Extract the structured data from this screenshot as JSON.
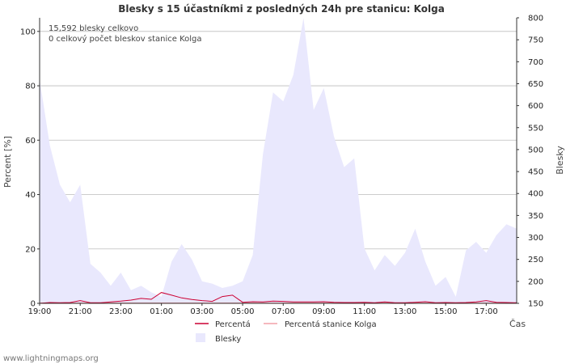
{
  "chart_data": {
    "type": "area",
    "title": "Blesky s 15 účastníkmi z posledných 24h pre stanicu: Kolga",
    "xlabel": "Čas",
    "ylabel_left": "Percent   [%]",
    "ylabel_right": "Blesky",
    "ylim_left": [
      0,
      105
    ],
    "ylim_right": [
      150,
      800
    ],
    "xlim": [
      0,
      23.5
    ],
    "x_ticks": [
      "19:00",
      "21:00",
      "23:00",
      "01:00",
      "03:00",
      "05:00",
      "07:00",
      "09:00",
      "11:00",
      "13:00",
      "15:00",
      "17:00"
    ],
    "y_ticks_left": [
      "0",
      "20",
      "40",
      "60",
      "80",
      "100"
    ],
    "y_ticks_right": [
      "150",
      "200",
      "250",
      "300",
      "350",
      "400",
      "450",
      "500",
      "550",
      "600",
      "650",
      "700",
      "750",
      "800"
    ],
    "annotations": [
      "15,592 blesky celkovo",
      "0 celkový počet bleskov stanice Kolga"
    ],
    "series": [
      {
        "name": "Blesky",
        "axis": "right",
        "x": [
          0,
          0.5,
          1,
          1.5,
          2,
          2.5,
          3,
          3.5,
          4,
          4.5,
          5,
          5.5,
          6,
          6.5,
          7,
          7.5,
          8,
          8.5,
          9,
          9.5,
          10,
          10.5,
          11,
          11.5,
          12,
          12.5,
          13,
          13.5,
          14,
          14.5,
          15,
          15.5,
          16,
          16.5,
          17,
          17.5,
          18,
          18.5,
          19,
          19.5,
          20,
          20.5,
          21,
          21.5,
          22,
          22.5,
          23,
          23.5
        ],
        "values": [
          660,
          510,
          420,
          380,
          420,
          240,
          220,
          190,
          220,
          180,
          190,
          175,
          165,
          245,
          285,
          250,
          200,
          195,
          185,
          190,
          200,
          260,
          490,
          630,
          610,
          670,
          800,
          590,
          640,
          530,
          460,
          480,
          275,
          225,
          260,
          235,
          265,
          320,
          245,
          190,
          210,
          165,
          270,
          290,
          265,
          305,
          330,
          320
        ]
      },
      {
        "name": "Percentá",
        "axis": "left",
        "x": [
          0,
          0.5,
          1,
          1.5,
          2,
          2.5,
          3,
          3.5,
          4,
          4.5,
          5,
          5.5,
          6,
          6.5,
          7,
          7.5,
          8,
          8.5,
          9,
          9.5,
          10,
          10.5,
          11,
          11.5,
          12,
          12.5,
          13,
          13.5,
          14,
          14.5,
          15,
          15.5,
          16,
          16.5,
          17,
          17.5,
          18,
          18.5,
          19,
          19.5,
          20,
          20.5,
          21,
          21.5,
          22,
          22.5,
          23,
          23.5
        ],
        "values": [
          0,
          0.3,
          0.2,
          0.3,
          1,
          0.2,
          0.2,
          0.5,
          0.8,
          1.2,
          1.8,
          1.5,
          4,
          3,
          2,
          1.4,
          1,
          0.7,
          2.5,
          3,
          0.4,
          0.6,
          0.5,
          0.8,
          0.7,
          0.5,
          0.5,
          0.5,
          0.6,
          0.4,
          0.3,
          0.3,
          0.4,
          0.2,
          0.5,
          0.2,
          0.2,
          0.4,
          0.6,
          0.2,
          0.3,
          0.2,
          0.3,
          0.5,
          1,
          0.4,
          0.3,
          0.2
        ]
      },
      {
        "name": "Percentá stanice Kolga",
        "axis": "left",
        "x": [
          0,
          23.5
        ],
        "values": [
          0,
          0
        ]
      }
    ],
    "legend": [
      "Percentá",
      "Percentá stanice Kolga",
      "Blesky"
    ],
    "colors": {
      "blesky_fill": "#e9e8fd",
      "percenta_line": "#cc0033",
      "kolga_line": "#f2a1a8",
      "grid": "#bdbdbd"
    }
  },
  "footer": "www.lightningmaps.org"
}
